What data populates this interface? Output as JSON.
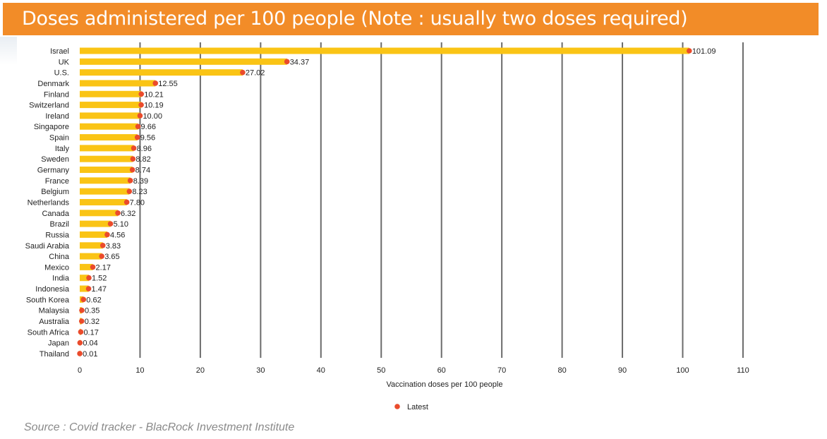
{
  "page": {
    "title": "Doses administered per 100 people (Note : usually two doses required)",
    "source": "Source : Covid tracker  - BlacRock Investment Institute"
  },
  "colors": {
    "banner": "#f28c28",
    "bar": "#fac415",
    "marker": "#ea4b2c",
    "grid": "#6b6b6b"
  },
  "chart_data": {
    "type": "bar",
    "orientation": "horizontal",
    "categories": [
      "Israel",
      "UK",
      "U.S.",
      "Denmark",
      "Finland",
      "Switzerland",
      "Ireland",
      "Singapore",
      "Spain",
      "Italy",
      "Sweden",
      "Germany",
      "France",
      "Belgium",
      "Netherlands",
      "Canada",
      "Brazil",
      "Russia",
      "Saudi Arabia",
      "China",
      "Mexico",
      "India",
      "Indonesia",
      "South Korea",
      "Malaysia",
      "Australia",
      "South Africa",
      "Japan",
      "Thailand"
    ],
    "values": [
      101.09,
      34.37,
      27.02,
      12.55,
      10.21,
      10.19,
      10.0,
      9.66,
      9.56,
      8.96,
      8.82,
      8.74,
      8.39,
      8.23,
      7.8,
      6.32,
      5.1,
      4.56,
      3.83,
      3.65,
      2.17,
      1.52,
      1.47,
      0.62,
      0.35,
      0.32,
      0.17,
      0.04,
      0.01
    ],
    "value_labels": [
      "101.09",
      "34.37",
      "27.02",
      "12.55",
      "10.21",
      "10.19",
      "10.00",
      "9.66",
      "9.56",
      "8.96",
      "8.82",
      "8.74",
      "8.39",
      "8.23",
      "7.80",
      "6.32",
      "5.10",
      "4.56",
      "3.83",
      "3.65",
      "2.17",
      "1.52",
      "1.47",
      "0.62",
      "0.35",
      "0.32",
      "0.17",
      "0.04",
      "0.01"
    ],
    "xlabel": "Vaccination doses per 100 people",
    "xlim": [
      0,
      110
    ],
    "xticks": [
      0,
      10,
      20,
      30,
      40,
      50,
      60,
      70,
      80,
      90,
      100,
      110
    ],
    "grid": "vertical",
    "legend": {
      "placement": "bottom-center",
      "entries": [
        "Latest"
      ]
    }
  }
}
